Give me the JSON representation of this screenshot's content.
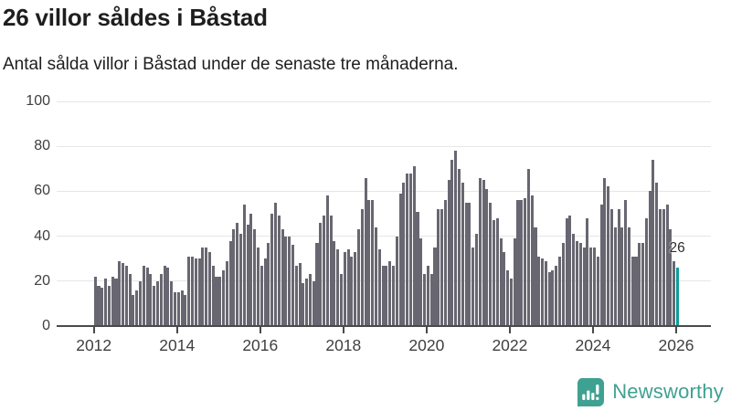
{
  "header": {
    "title": "26 villor såldes i Båstad",
    "subtitle": "Antal sålda villor i Båstad under de senaste tre månaderna."
  },
  "chart_data": {
    "type": "bar",
    "title": "26 villor såldes i Båstad",
    "xlabel": "",
    "ylabel": "",
    "ylim": [
      0,
      100
    ],
    "grid": "horizontal",
    "y_ticks": [
      0,
      20,
      40,
      60,
      80,
      100
    ],
    "x_ticks": [
      "2012",
      "2014",
      "2016",
      "2018",
      "2020",
      "2022",
      "2024",
      "2026"
    ],
    "x_range": {
      "start": "2012-01",
      "end": "2026-01",
      "interval": "monthly"
    },
    "bar_color": "#686771",
    "series": [
      {
        "name": "Antal sålda villor under de senaste tre månaderna",
        "values": [
          22,
          18,
          17,
          21,
          18,
          22,
          21,
          29,
          28,
          27,
          23,
          14,
          16,
          20,
          27,
          26,
          23,
          18,
          20,
          23,
          27,
          26,
          20,
          15,
          15,
          16,
          14,
          31,
          31,
          30,
          30,
          35,
          35,
          33,
          27,
          22,
          22,
          25,
          29,
          38,
          43,
          46,
          41,
          54,
          45,
          50,
          43,
          35,
          27,
          30,
          37,
          50,
          55,
          49,
          43,
          40,
          40,
          36,
          27,
          28,
          19,
          21,
          23,
          20,
          37,
          46,
          49,
          58,
          49,
          38,
          34,
          23,
          33,
          34,
          31,
          33,
          43,
          52,
          66,
          56,
          56,
          44,
          34,
          27,
          27,
          29,
          27,
          40,
          59,
          64,
          68,
          68,
          71,
          51,
          39,
          23,
          27,
          23,
          35,
          52,
          52,
          56,
          65,
          74,
          78,
          70,
          64,
          55,
          55,
          35,
          41,
          66,
          65,
          61,
          55,
          47,
          48,
          39,
          33,
          25,
          21,
          39,
          56,
          56,
          57,
          70,
          58,
          44,
          31,
          30,
          29,
          24,
          25,
          27,
          31,
          37,
          48,
          49,
          41,
          38,
          37,
          35,
          48,
          35,
          35,
          31,
          54,
          66,
          62,
          52,
          44,
          52,
          44,
          56,
          44,
          31,
          31,
          37,
          37,
          48,
          60,
          74,
          64,
          52,
          52,
          54,
          43,
          29,
          26
        ]
      }
    ],
    "highlight": {
      "position": "last",
      "value": 26,
      "label": "26",
      "color": "#0d9e97"
    }
  },
  "branding": {
    "name": "Newsworthy",
    "color": "#3fa191",
    "icon": "speech-bubble-bar-chart-exclamation"
  }
}
